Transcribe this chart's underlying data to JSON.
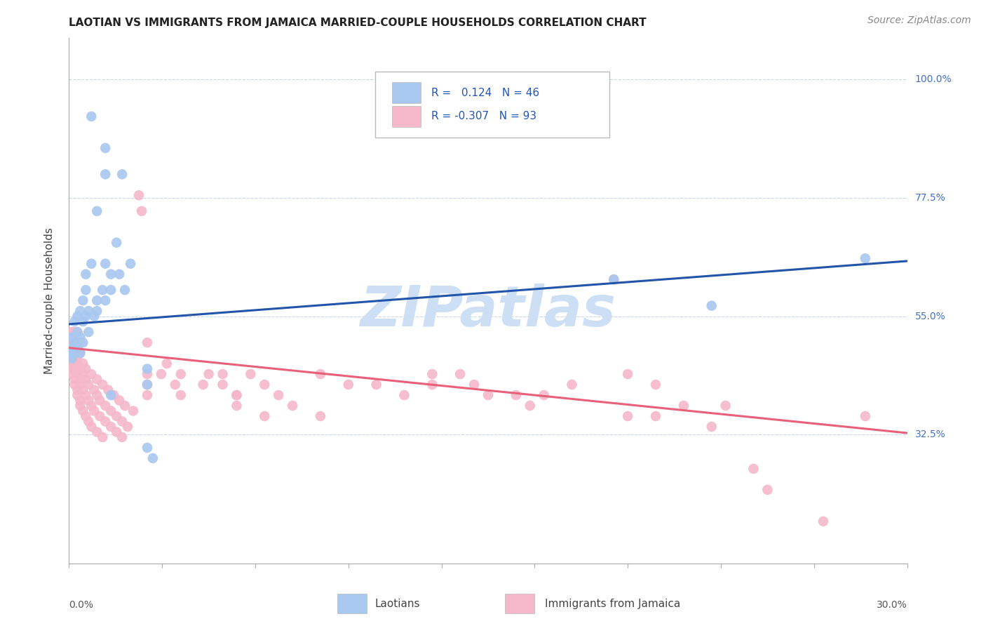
{
  "title": "LAOTIAN VS IMMIGRANTS FROM JAMAICA MARRIED-COUPLE HOUSEHOLDS CORRELATION CHART",
  "source": "Source: ZipAtlas.com",
  "ylabel": "Married-couple Households",
  "ytick_labels": [
    "100.0%",
    "77.5%",
    "55.0%",
    "32.5%"
  ],
  "ytick_values": [
    1.0,
    0.775,
    0.55,
    0.325
  ],
  "legend_label_1": "Laotians",
  "legend_label_2": "Immigrants from Jamaica",
  "blue_scatter_color": "#a8c8f0",
  "pink_scatter_color": "#f5b8cb",
  "blue_line_color": "#2255aa",
  "pink_line_color": "#e8607a",
  "xmin": 0.0,
  "xmax": 0.3,
  "ymin": 0.08,
  "ymax": 1.08,
  "blue_trend_x": [
    0.0,
    0.3
  ],
  "blue_trend_y": [
    0.535,
    0.655
  ],
  "pink_trend_x": [
    0.0,
    0.3
  ],
  "pink_trend_y": [
    0.49,
    0.328
  ],
  "blue_points": [
    [
      0.008,
      0.93
    ],
    [
      0.013,
      0.87
    ],
    [
      0.013,
      0.82
    ],
    [
      0.019,
      0.82
    ],
    [
      0.01,
      0.75
    ],
    [
      0.017,
      0.69
    ],
    [
      0.008,
      0.65
    ],
    [
      0.013,
      0.65
    ],
    [
      0.022,
      0.65
    ],
    [
      0.006,
      0.63
    ],
    [
      0.015,
      0.63
    ],
    [
      0.018,
      0.63
    ],
    [
      0.006,
      0.6
    ],
    [
      0.012,
      0.6
    ],
    [
      0.015,
      0.6
    ],
    [
      0.02,
      0.6
    ],
    [
      0.005,
      0.58
    ],
    [
      0.01,
      0.58
    ],
    [
      0.013,
      0.58
    ],
    [
      0.004,
      0.56
    ],
    [
      0.007,
      0.56
    ],
    [
      0.01,
      0.56
    ],
    [
      0.003,
      0.55
    ],
    [
      0.006,
      0.55
    ],
    [
      0.009,
      0.55
    ],
    [
      0.002,
      0.54
    ],
    [
      0.005,
      0.54
    ],
    [
      0.003,
      0.52
    ],
    [
      0.007,
      0.52
    ],
    [
      0.001,
      0.51
    ],
    [
      0.004,
      0.51
    ],
    [
      0.002,
      0.5
    ],
    [
      0.005,
      0.5
    ],
    [
      0.001,
      0.49
    ],
    [
      0.003,
      0.49
    ],
    [
      0.001,
      0.48
    ],
    [
      0.004,
      0.48
    ],
    [
      0.001,
      0.47
    ],
    [
      0.028,
      0.45
    ],
    [
      0.028,
      0.42
    ],
    [
      0.015,
      0.4
    ],
    [
      0.028,
      0.3
    ],
    [
      0.03,
      0.28
    ],
    [
      0.195,
      0.62
    ],
    [
      0.23,
      0.57
    ],
    [
      0.285,
      0.66
    ]
  ],
  "pink_points": [
    [
      0.001,
      0.52
    ],
    [
      0.002,
      0.52
    ],
    [
      0.003,
      0.52
    ],
    [
      0.001,
      0.5
    ],
    [
      0.002,
      0.5
    ],
    [
      0.003,
      0.5
    ],
    [
      0.004,
      0.5
    ],
    [
      0.001,
      0.49
    ],
    [
      0.002,
      0.49
    ],
    [
      0.003,
      0.49
    ],
    [
      0.001,
      0.48
    ],
    [
      0.002,
      0.48
    ],
    [
      0.004,
      0.48
    ],
    [
      0.001,
      0.47
    ],
    [
      0.002,
      0.47
    ],
    [
      0.003,
      0.47
    ],
    [
      0.001,
      0.46
    ],
    [
      0.002,
      0.46
    ],
    [
      0.003,
      0.46
    ],
    [
      0.005,
      0.46
    ],
    [
      0.001,
      0.45
    ],
    [
      0.002,
      0.45
    ],
    [
      0.004,
      0.45
    ],
    [
      0.006,
      0.45
    ],
    [
      0.001,
      0.44
    ],
    [
      0.003,
      0.44
    ],
    [
      0.005,
      0.44
    ],
    [
      0.008,
      0.44
    ],
    [
      0.002,
      0.43
    ],
    [
      0.004,
      0.43
    ],
    [
      0.006,
      0.43
    ],
    [
      0.01,
      0.43
    ],
    [
      0.002,
      0.42
    ],
    [
      0.004,
      0.42
    ],
    [
      0.007,
      0.42
    ],
    [
      0.012,
      0.42
    ],
    [
      0.003,
      0.41
    ],
    [
      0.005,
      0.41
    ],
    [
      0.009,
      0.41
    ],
    [
      0.014,
      0.41
    ],
    [
      0.003,
      0.4
    ],
    [
      0.006,
      0.4
    ],
    [
      0.01,
      0.4
    ],
    [
      0.016,
      0.4
    ],
    [
      0.004,
      0.39
    ],
    [
      0.007,
      0.39
    ],
    [
      0.011,
      0.39
    ],
    [
      0.018,
      0.39
    ],
    [
      0.004,
      0.38
    ],
    [
      0.008,
      0.38
    ],
    [
      0.013,
      0.38
    ],
    [
      0.02,
      0.38
    ],
    [
      0.005,
      0.37
    ],
    [
      0.009,
      0.37
    ],
    [
      0.015,
      0.37
    ],
    [
      0.023,
      0.37
    ],
    [
      0.006,
      0.36
    ],
    [
      0.011,
      0.36
    ],
    [
      0.017,
      0.36
    ],
    [
      0.007,
      0.35
    ],
    [
      0.013,
      0.35
    ],
    [
      0.019,
      0.35
    ],
    [
      0.008,
      0.34
    ],
    [
      0.015,
      0.34
    ],
    [
      0.021,
      0.34
    ],
    [
      0.01,
      0.33
    ],
    [
      0.017,
      0.33
    ],
    [
      0.012,
      0.32
    ],
    [
      0.019,
      0.32
    ],
    [
      0.025,
      0.78
    ],
    [
      0.026,
      0.75
    ],
    [
      0.028,
      0.5
    ],
    [
      0.035,
      0.46
    ],
    [
      0.028,
      0.44
    ],
    [
      0.033,
      0.44
    ],
    [
      0.04,
      0.44
    ],
    [
      0.05,
      0.44
    ],
    [
      0.028,
      0.42
    ],
    [
      0.038,
      0.42
    ],
    [
      0.048,
      0.42
    ],
    [
      0.028,
      0.4
    ],
    [
      0.04,
      0.4
    ],
    [
      0.06,
      0.4
    ],
    [
      0.055,
      0.44
    ],
    [
      0.065,
      0.44
    ],
    [
      0.055,
      0.42
    ],
    [
      0.07,
      0.42
    ],
    [
      0.06,
      0.4
    ],
    [
      0.075,
      0.4
    ],
    [
      0.06,
      0.38
    ],
    [
      0.08,
      0.38
    ],
    [
      0.07,
      0.36
    ],
    [
      0.09,
      0.36
    ],
    [
      0.09,
      0.44
    ],
    [
      0.1,
      0.42
    ],
    [
      0.11,
      0.42
    ],
    [
      0.12,
      0.4
    ],
    [
      0.13,
      0.44
    ],
    [
      0.14,
      0.44
    ],
    [
      0.13,
      0.42
    ],
    [
      0.145,
      0.42
    ],
    [
      0.15,
      0.4
    ],
    [
      0.16,
      0.4
    ],
    [
      0.165,
      0.38
    ],
    [
      0.17,
      0.4
    ],
    [
      0.18,
      0.42
    ],
    [
      0.2,
      0.44
    ],
    [
      0.21,
      0.42
    ],
    [
      0.2,
      0.36
    ],
    [
      0.21,
      0.36
    ],
    [
      0.22,
      0.38
    ],
    [
      0.235,
      0.38
    ],
    [
      0.195,
      0.62
    ],
    [
      0.23,
      0.34
    ],
    [
      0.245,
      0.26
    ],
    [
      0.25,
      0.22
    ],
    [
      0.27,
      0.16
    ],
    [
      0.285,
      0.36
    ]
  ],
  "watermark": "ZIPatlas",
  "watermark_color": "#ccdff5",
  "background_color": "#ffffff",
  "grid_color": "#c8d8e8",
  "title_fontsize": 11,
  "axis_label_fontsize": 11,
  "tick_label_fontsize": 10,
  "legend_fontsize": 11,
  "source_fontsize": 10
}
